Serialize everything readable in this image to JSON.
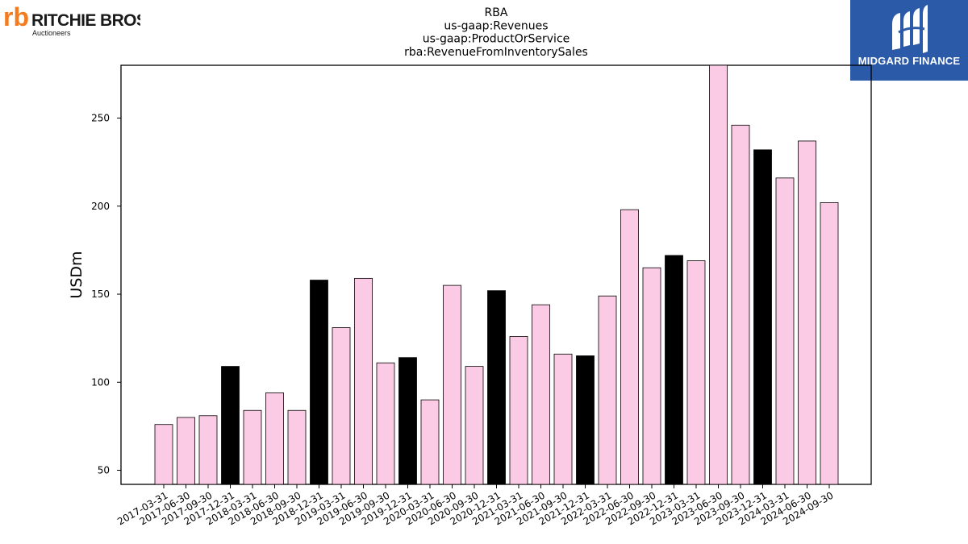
{
  "logos": {
    "left": {
      "brand": "rb",
      "name": "RITCHIE BROS.",
      "tagline": "Auctioneers",
      "color": "#f47b20"
    },
    "right": {
      "name": "MIDGARD FINANCE",
      "background": "#2b5aa8"
    }
  },
  "chart_data": {
    "type": "bar",
    "title": [
      "RBA",
      "us-gaap:Revenues",
      "us-gaap:ProductOrService",
      "rba:RevenueFromInventorySales"
    ],
    "ylabel": "USDm",
    "xlabel": "",
    "ylim": [
      42,
      280
    ],
    "yticks": [
      50,
      100,
      150,
      200,
      250
    ],
    "grid": false,
    "colors": {
      "quarter": "#fbcae4",
      "year_end": "#000000",
      "edge": "#000000"
    },
    "categories": [
      "2017-03-31",
      "2017-06-30",
      "2017-09-30",
      "2017-12-31",
      "2018-03-31",
      "2018-06-30",
      "2018-09-30",
      "2018-12-31",
      "2019-03-31",
      "2019-06-30",
      "2019-09-30",
      "2019-12-31",
      "2020-03-31",
      "2020-06-30",
      "2020-09-30",
      "2020-12-31",
      "2021-03-31",
      "2021-06-30",
      "2021-09-30",
      "2021-12-31",
      "2022-03-31",
      "2022-06-30",
      "2022-09-30",
      "2022-12-31",
      "2023-03-31",
      "2023-06-30",
      "2023-09-30",
      "2023-12-31",
      "2024-03-31",
      "2024-06-30",
      "2024-09-30"
    ],
    "values": [
      76,
      80,
      81,
      109,
      84,
      94,
      84,
      158,
      131,
      159,
      111,
      114,
      90,
      155,
      109,
      152,
      126,
      144,
      116,
      115,
      149,
      198,
      165,
      172,
      169,
      281,
      246,
      232,
      216,
      237,
      202
    ],
    "highlighted": [
      false,
      false,
      false,
      true,
      false,
      false,
      false,
      true,
      false,
      false,
      false,
      true,
      false,
      false,
      false,
      true,
      false,
      false,
      false,
      true,
      false,
      false,
      false,
      true,
      false,
      false,
      false,
      true,
      false,
      false,
      false
    ]
  }
}
